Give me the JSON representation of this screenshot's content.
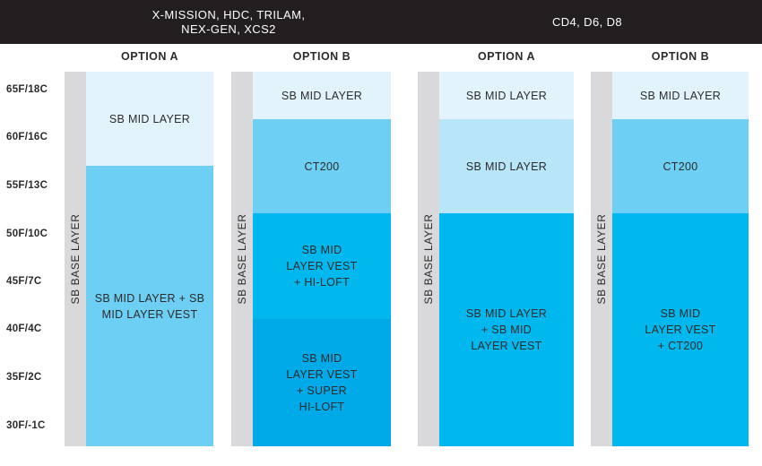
{
  "header": {
    "left_group": "X-MISSION, HDC, TRILAM,\nNEX-GEN, XCS2",
    "right_group": "CD4, D6, D8"
  },
  "temperatures": [
    "65F/18C",
    "60F/16C",
    "55F/13C",
    "50F/10C",
    "45F/7C",
    "40F/4C",
    "35F/2C",
    "30F/-1C"
  ],
  "columns": [
    {
      "option": "OPTION A",
      "base_layer": "SB BASE LAYER",
      "segments": [
        {
          "label": "SB MID LAYER",
          "color": "#e3f3fc"
        },
        {
          "label": "SB MID LAYER + SB\nMID LAYER VEST",
          "color": "#6ecff4"
        }
      ]
    },
    {
      "option": "OPTION B",
      "base_layer": "SB BASE LAYER",
      "segments": [
        {
          "label": "SB MID LAYER",
          "color": "#e3f3fc"
        },
        {
          "label": "CT200",
          "color": "#6ecff4"
        },
        {
          "label": "SB MID\nLAYER VEST\n+ HI-LOFT",
          "color": "#00b7ee"
        },
        {
          "label": "SB MID\nLAYER VEST\n+ SUPER\nHI-LOFT",
          "color": "#00aae9"
        }
      ]
    },
    {
      "option": "OPTION A",
      "base_layer": "SB BASE LAYER",
      "segments": [
        {
          "label": "SB MID LAYER",
          "color": "#e3f3fc"
        },
        {
          "label": "SB MID LAYER",
          "color": "#b9e5f8"
        },
        {
          "label": "SB MID LAYER\n+ SB MID\nLAYER VEST",
          "color": "#00b7ee"
        }
      ]
    },
    {
      "option": "OPTION B",
      "base_layer": "SB BASE LAYER",
      "segments": [
        {
          "label": "SB MID LAYER",
          "color": "#e3f3fc"
        },
        {
          "label": "CT200",
          "color": "#6ecff4"
        },
        {
          "label": "SB MID\nLAYER VEST\n+ CT200",
          "color": "#00b7ee"
        }
      ]
    }
  ]
}
